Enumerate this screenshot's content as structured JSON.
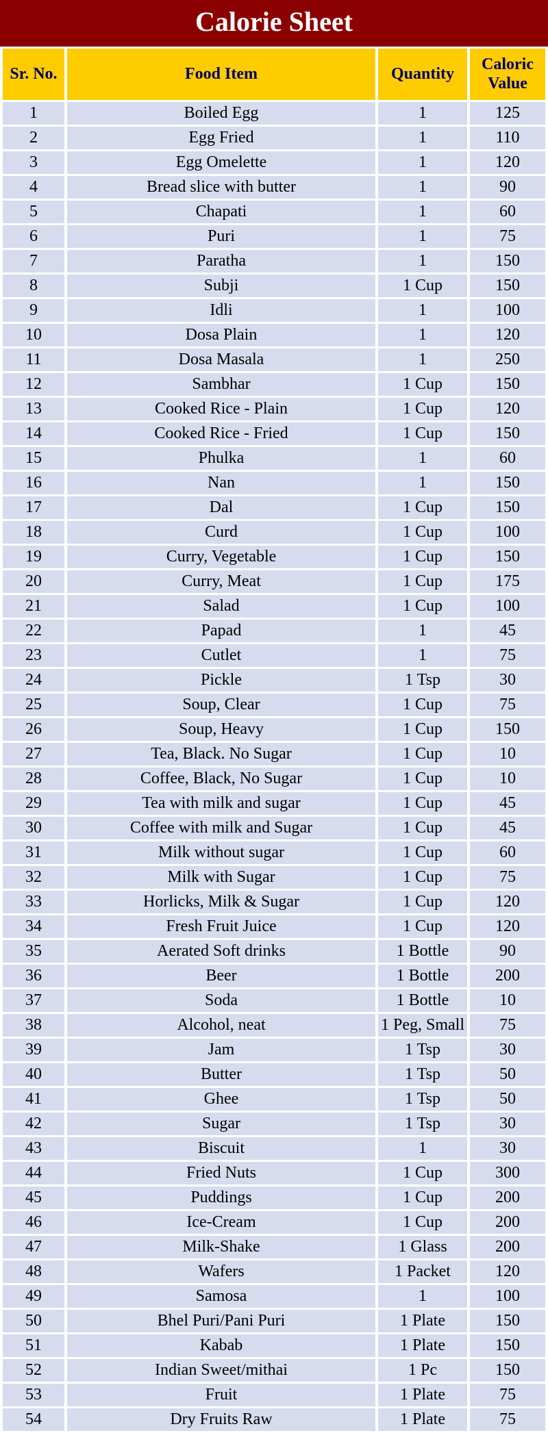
{
  "title": "Calorie Sheet",
  "columns": [
    "Sr. No.",
    "Food Item",
    "Quantity",
    "Caloric Value"
  ],
  "header_bg": "#ffcc00",
  "header_fg": "#000066",
  "title_bg": "#8b0000",
  "title_fg": "#ffffff",
  "row_bg": "#d6dced",
  "row_fg": "#000000",
  "rows": [
    {
      "sr": "1",
      "item": "Boiled Egg",
      "qty": "1",
      "cal": "125"
    },
    {
      "sr": "2",
      "item": "Egg Fried",
      "qty": "1",
      "cal": "110"
    },
    {
      "sr": "3",
      "item": "Egg Omelette",
      "qty": "1",
      "cal": "120"
    },
    {
      "sr": "4",
      "item": "Bread slice with butter",
      "qty": "1",
      "cal": "90"
    },
    {
      "sr": "5",
      "item": "Chapati",
      "qty": "1",
      "cal": "60"
    },
    {
      "sr": "6",
      "item": "Puri",
      "qty": "1",
      "cal": "75"
    },
    {
      "sr": "7",
      "item": "Paratha",
      "qty": "1",
      "cal": "150"
    },
    {
      "sr": "8",
      "item": "Subji",
      "qty": "1 Cup",
      "cal": "150"
    },
    {
      "sr": "9",
      "item": "Idli",
      "qty": "1",
      "cal": "100"
    },
    {
      "sr": "10",
      "item": "Dosa Plain",
      "qty": "1",
      "cal": "120"
    },
    {
      "sr": "11",
      "item": "Dosa Masala",
      "qty": "1",
      "cal": "250"
    },
    {
      "sr": "12",
      "item": "Sambhar",
      "qty": "1  Cup",
      "cal": "150"
    },
    {
      "sr": "13",
      "item": "Cooked Rice - Plain",
      "qty": "1  Cup",
      "cal": "120"
    },
    {
      "sr": "14",
      "item": "Cooked Rice - Fried",
      "qty": "1  Cup",
      "cal": "150"
    },
    {
      "sr": "15",
      "item": "Phulka",
      "qty": "1",
      "cal": "60"
    },
    {
      "sr": "16",
      "item": "Nan",
      "qty": "1",
      "cal": "150"
    },
    {
      "sr": "17",
      "item": "Dal",
      "qty": "1 Cup",
      "cal": "150"
    },
    {
      "sr": "18",
      "item": "Curd",
      "qty": "1 Cup",
      "cal": "100"
    },
    {
      "sr": "19",
      "item": "Curry, Vegetable",
      "qty": "1 Cup",
      "cal": "150"
    },
    {
      "sr": "20",
      "item": "Curry, Meat",
      "qty": "1 Cup",
      "cal": "175"
    },
    {
      "sr": "21",
      "item": "Salad",
      "qty": "1 Cup",
      "cal": "100"
    },
    {
      "sr": "22",
      "item": "Papad",
      "qty": "1",
      "cal": "45"
    },
    {
      "sr": "23",
      "item": "Cutlet",
      "qty": "1",
      "cal": "75"
    },
    {
      "sr": "24",
      "item": "Pickle",
      "qty": "1 Tsp",
      "cal": "30"
    },
    {
      "sr": "25",
      "item": "Soup, Clear",
      "qty": "1 Cup",
      "cal": "75"
    },
    {
      "sr": "26",
      "item": "Soup, Heavy",
      "qty": "1 Cup",
      "cal": "150"
    },
    {
      "sr": "27",
      "item": "Tea, Black. No Sugar",
      "qty": "1 Cup",
      "cal": "10"
    },
    {
      "sr": "28",
      "item": "Coffee, Black, No Sugar",
      "qty": "1 Cup",
      "cal": "10"
    },
    {
      "sr": "29",
      "item": "Tea with milk and sugar",
      "qty": "1 Cup",
      "cal": "45"
    },
    {
      "sr": "30",
      "item": "Coffee with milk and Sugar",
      "qty": "1 Cup",
      "cal": "45"
    },
    {
      "sr": "31",
      "item": "Milk without sugar",
      "qty": "1 Cup",
      "cal": "60"
    },
    {
      "sr": "32",
      "item": "Milk with Sugar",
      "qty": "1 Cup",
      "cal": "75"
    },
    {
      "sr": "33",
      "item": "Horlicks, Milk & Sugar",
      "qty": "1 Cup",
      "cal": "120"
    },
    {
      "sr": "34",
      "item": "Fresh Fruit Juice",
      "qty": "1 Cup",
      "cal": "120"
    },
    {
      "sr": "35",
      "item": "Aerated Soft drinks",
      "qty": "1 Bottle",
      "cal": "90"
    },
    {
      "sr": "36",
      "item": "Beer",
      "qty": "1 Bottle",
      "cal": "200"
    },
    {
      "sr": "37",
      "item": "Soda",
      "qty": "1 Bottle",
      "cal": "10"
    },
    {
      "sr": "38",
      "item": "Alcohol, neat",
      "qty": "1 Peg, Small",
      "cal": "75"
    },
    {
      "sr": "39",
      "item": "Jam",
      "qty": "1 Tsp",
      "cal": "30"
    },
    {
      "sr": "40",
      "item": "Butter",
      "qty": "1 Tsp",
      "cal": "50"
    },
    {
      "sr": "41",
      "item": "Ghee",
      "qty": "1 Tsp",
      "cal": "50"
    },
    {
      "sr": "42",
      "item": "Sugar",
      "qty": "1 Tsp",
      "cal": "30"
    },
    {
      "sr": "43",
      "item": "Biscuit",
      "qty": "1",
      "cal": "30"
    },
    {
      "sr": "44",
      "item": "Fried Nuts",
      "qty": "1 Cup",
      "cal": "300"
    },
    {
      "sr": "45",
      "item": "Puddings",
      "qty": "1 Cup",
      "cal": "200"
    },
    {
      "sr": "46",
      "item": "Ice-Cream",
      "qty": "1 Cup",
      "cal": "200"
    },
    {
      "sr": "47",
      "item": "Milk-Shake",
      "qty": "1 Glass",
      "cal": "200"
    },
    {
      "sr": "48",
      "item": "Wafers",
      "qty": "1 Packet",
      "cal": "120"
    },
    {
      "sr": "49",
      "item": "Samosa",
      "qty": "1",
      "cal": "100"
    },
    {
      "sr": "50",
      "item": "Bhel Puri/Pani Puri",
      "qty": "1 Plate",
      "cal": "150"
    },
    {
      "sr": "51",
      "item": "Kabab",
      "qty": "1 Plate",
      "cal": "150"
    },
    {
      "sr": "52",
      "item": "Indian Sweet/mithai",
      "qty": "1 Pc",
      "cal": "150"
    },
    {
      "sr": "53",
      "item": "Fruit",
      "qty": "1 Plate",
      "cal": "75"
    },
    {
      "sr": "54",
      "item": "Dry Fruits Raw",
      "qty": "1 Plate",
      "cal": "75"
    }
  ]
}
